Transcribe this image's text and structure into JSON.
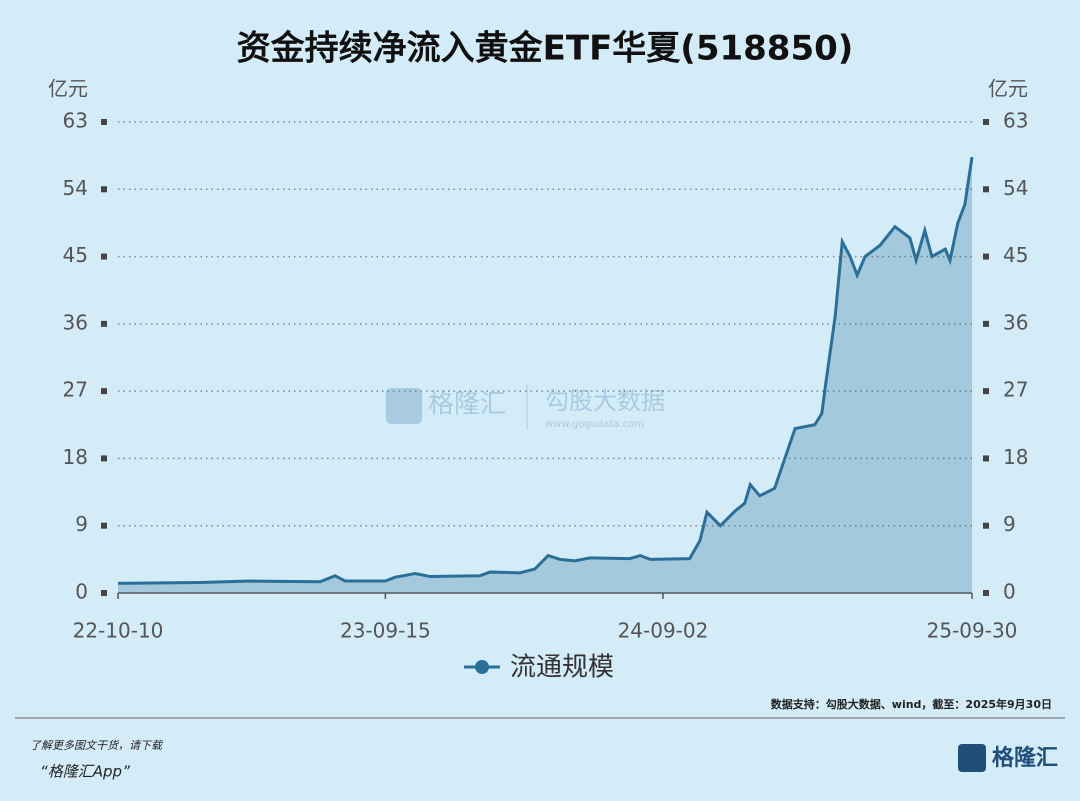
{
  "chart_data": {
    "type": "area",
    "title": "资金持续净流入黄金ETF华夏(518850)",
    "y_unit": "亿元",
    "x": [
      "22-10-10",
      "23-01-22",
      "23-03-27",
      "23-06-24",
      "23-07-13",
      "23-07-26",
      "23-09-15",
      "23-09-27",
      "23-10-23",
      "23-11-11",
      "24-01-13",
      "24-01-26",
      "24-03-04",
      "24-03-23",
      "24-04-09",
      "24-04-24",
      "24-05-13",
      "24-06-01",
      "24-07-22",
      "24-08-04",
      "24-08-17",
      "24-10-06",
      "24-10-19",
      "24-10-28",
      "24-11-14",
      "24-12-03",
      "24-12-15",
      "24-12-22",
      "25-01-03",
      "25-01-22",
      "25-02-04",
      "25-02-17",
      "25-03-14",
      "25-03-23",
      "25-03-28",
      "25-04-09",
      "25-04-18",
      "25-04-28",
      "25-05-07",
      "25-05-17",
      "25-06-05",
      "25-06-24",
      "25-07-13",
      "25-07-21",
      "25-08-01",
      "25-08-10",
      "25-08-27",
      "25-09-02",
      "25-09-12",
      "25-09-21",
      "25-09-30"
    ],
    "series": [
      {
        "name": "流通规模",
        "color": "#2b6f98",
        "values": [
          1.3,
          1.4,
          1.6,
          1.5,
          2.3,
          1.6,
          1.6,
          2.1,
          2.6,
          2.2,
          2.3,
          2.8,
          2.7,
          3.2,
          5.0,
          4.5,
          4.3,
          4.7,
          4.6,
          5.0,
          4.5,
          4.6,
          7.0,
          10.8,
          9.0,
          11.0,
          12.0,
          14.5,
          13.0,
          14.0,
          18.0,
          22.0,
          22.5,
          24.0,
          28.0,
          37.0,
          47.0,
          45.0,
          42.5,
          45.0,
          46.5,
          49.0,
          47.5,
          44.5,
          48.5,
          45.0,
          46.0,
          44.5,
          49.5,
          52.0,
          58.3
        ]
      }
    ],
    "xlim": [
      "22-10-10",
      "25-09-30"
    ],
    "xticks": [
      "22-10-10",
      "23-09-15",
      "24-09-02",
      "25-09-30"
    ],
    "ylim": [
      0,
      63
    ],
    "yticks": [
      0,
      9,
      18,
      27,
      36,
      45,
      54,
      63
    ],
    "grid": true,
    "source": "数据支持：勾股大数据、wind，截至：2025年9月30日"
  },
  "watermark": {
    "brand": "格隆汇",
    "partner": "勾股大数据",
    "url": "www.gogudata.com"
  },
  "footer": {
    "note": "了解更多图文干货，请下载",
    "app": "“格隆汇App”",
    "logo": "格隆汇"
  }
}
